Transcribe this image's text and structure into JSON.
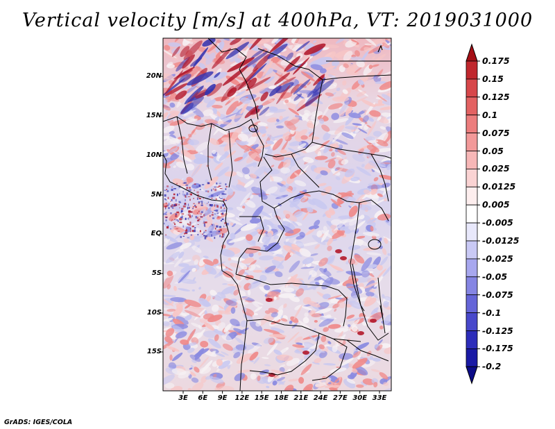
{
  "title": "Vertical velocity [m/s] at 400hPa, VT: 2019031000",
  "credit": "GrADS: IGES/COLA",
  "map": {
    "lat_labels": [
      "20N",
      "15N",
      "10N",
      "5N",
      "EQ",
      "5S",
      "10S",
      "15S"
    ],
    "lon_labels": [
      "3E",
      "6E",
      "9E",
      "12E",
      "15E",
      "18E",
      "21E",
      "24E",
      "27E",
      "30E",
      "33E"
    ]
  },
  "colorbar": {
    "labels": [
      "0.175",
      "0.15",
      "0.125",
      "0.1",
      "0.075",
      "0.05",
      "0.025",
      "0.0125",
      "0.005",
      "-0.005",
      "-0.0125",
      "-0.025",
      "-0.05",
      "-0.075",
      "-0.1",
      "-0.125",
      "-0.175",
      "-0.2"
    ],
    "colors": [
      "#a50f15",
      "#c0272d",
      "#d7474a",
      "#e36262",
      "#ec7d7d",
      "#f29999",
      "#f7b7b7",
      "#fad3d3",
      "#fdeeee",
      "#ffffff",
      "#e8e8fb",
      "#c9c9f5",
      "#a7a7ee",
      "#8585e3",
      "#6565d8",
      "#4848cb",
      "#2d2dba",
      "#1a1aa5",
      "#0c0c88"
    ]
  },
  "field_palette": {
    "strong_up": "#b2182b",
    "up": "#ef8a8a",
    "weak_up": "#f7c6c6",
    "neutral": "#f6f1f4",
    "weak_down": "#c8c8f0",
    "down": "#8a8ae0",
    "strong_down": "#3333b0"
  }
}
